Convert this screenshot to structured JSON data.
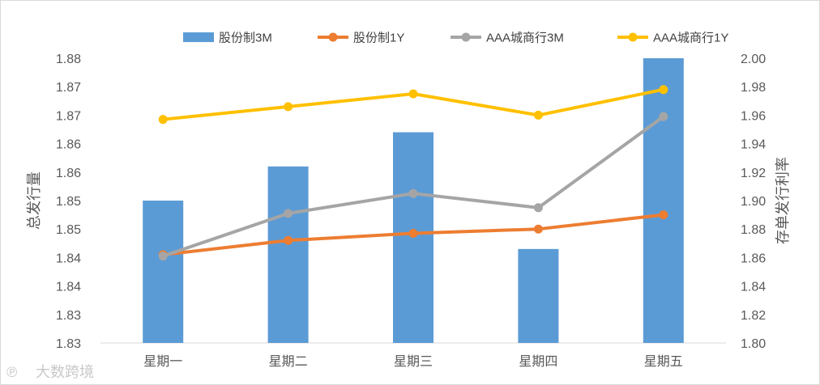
{
  "chart_data": {
    "type": "bar",
    "categories": [
      "星期一",
      "星期二",
      "星期三",
      "星期四",
      "星期五"
    ],
    "bar_series": [
      {
        "name": "股份制3M",
        "axis": "left",
        "color": "#5B9BD5",
        "values": [
          1.85,
          1.856,
          1.862,
          1.8415,
          1.875
        ]
      }
    ],
    "line_series": [
      {
        "name": "股份制1Y",
        "axis": "right",
        "color": "#ED7D31",
        "values": [
          1.862,
          1.872,
          1.877,
          1.88,
          1.89
        ]
      },
      {
        "name": "AAA城商行3M",
        "axis": "right",
        "color": "#A5A5A5",
        "values": [
          1.861,
          1.891,
          1.905,
          1.895,
          1.959
        ]
      },
      {
        "name": "AAA城商行1Y",
        "axis": "right",
        "color": "#FFC000",
        "values": [
          1.957,
          1.966,
          1.975,
          1.96,
          1.978
        ]
      }
    ],
    "left_axis": {
      "title": "总发行量",
      "ylim": [
        1.825,
        1.875
      ],
      "tick_labels": [
        "1.88",
        "1.87",
        "1.87",
        "1.86",
        "1.86",
        "1.85",
        "1.85",
        "1.84",
        "1.84",
        "1.83",
        "1.83"
      ]
    },
    "right_axis": {
      "title": "存单发行利率",
      "ylim": [
        1.8,
        2.0
      ],
      "tick_labels": [
        "2.00",
        "1.98",
        "1.96",
        "1.94",
        "1.92",
        "1.90",
        "1.88",
        "1.86",
        "1.84",
        "1.82",
        "1.80"
      ]
    },
    "grid": false,
    "legend_position": "top"
  },
  "watermark": "大数跨境"
}
